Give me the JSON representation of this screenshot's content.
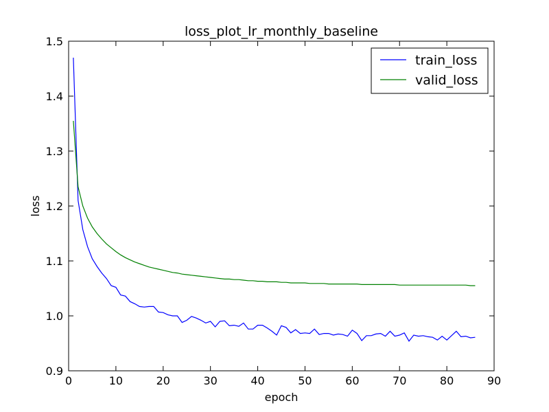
{
  "chart_data": {
    "type": "line",
    "title": "loss_plot_lr_monthly_baseline",
    "xlabel": "epoch",
    "ylabel": "loss",
    "xlim": [
      0,
      90
    ],
    "ylim": [
      0.9,
      1.5
    ],
    "xticks": [
      "0",
      "10",
      "20",
      "30",
      "40",
      "50",
      "60",
      "70",
      "80",
      "90"
    ],
    "yticks": [
      "0.9",
      "1.0",
      "1.1",
      "1.2",
      "1.3",
      "1.4",
      "1.5"
    ],
    "grid": false,
    "legend_position": "top-right",
    "series": [
      {
        "name": "train_loss",
        "color": "#0000ff",
        "x": [
          1,
          2,
          3,
          4,
          5,
          6,
          7,
          8,
          9,
          10,
          11,
          12,
          13,
          14,
          15,
          16,
          17,
          18,
          19,
          20,
          21,
          22,
          23,
          24,
          25,
          26,
          27,
          28,
          29,
          30,
          31,
          32,
          33,
          34,
          35,
          36,
          37,
          38,
          39,
          40,
          41,
          42,
          43,
          44,
          45,
          46,
          47,
          48,
          49,
          50,
          51,
          52,
          53,
          54,
          55,
          56,
          57,
          58,
          59,
          60,
          61,
          62,
          63,
          64,
          65,
          66,
          67,
          68,
          69,
          70,
          71,
          72,
          73,
          74,
          75,
          76,
          77,
          78,
          79,
          80,
          81,
          82,
          83,
          84,
          85,
          86
        ],
        "values": [
          1.47,
          1.21,
          1.157,
          1.126,
          1.104,
          1.09,
          1.078,
          1.068,
          1.055,
          1.052,
          1.038,
          1.036,
          1.026,
          1.022,
          1.017,
          1.016,
          1.017,
          1.017,
          1.007,
          1.006,
          1.002,
          1.0,
          1.0,
          0.988,
          0.992,
          0.999,
          0.996,
          0.992,
          0.987,
          0.99,
          0.98,
          0.99,
          0.991,
          0.982,
          0.983,
          0.981,
          0.987,
          0.976,
          0.976,
          0.983,
          0.983,
          0.978,
          0.972,
          0.965,
          0.982,
          0.979,
          0.969,
          0.975,
          0.968,
          0.969,
          0.968,
          0.976,
          0.966,
          0.968,
          0.968,
          0.965,
          0.967,
          0.966,
          0.963,
          0.974,
          0.968,
          0.955,
          0.964,
          0.964,
          0.967,
          0.968,
          0.963,
          0.972,
          0.963,
          0.965,
          0.969,
          0.954,
          0.965,
          0.963,
          0.964,
          0.962,
          0.961,
          0.956,
          0.963,
          0.956,
          0.964,
          0.972,
          0.962,
          0.963,
          0.96,
          0.961
        ]
      },
      {
        "name": "valid_loss",
        "color": "#008000",
        "x": [
          1,
          2,
          3,
          4,
          5,
          6,
          7,
          8,
          9,
          10,
          11,
          12,
          13,
          14,
          15,
          16,
          17,
          18,
          19,
          20,
          21,
          22,
          23,
          24,
          25,
          26,
          27,
          28,
          29,
          30,
          31,
          32,
          33,
          34,
          35,
          36,
          37,
          38,
          39,
          40,
          41,
          42,
          43,
          44,
          45,
          46,
          47,
          48,
          49,
          50,
          51,
          52,
          53,
          54,
          55,
          56,
          57,
          58,
          59,
          60,
          61,
          62,
          63,
          64,
          65,
          66,
          67,
          68,
          69,
          70,
          71,
          72,
          73,
          74,
          75,
          76,
          77,
          78,
          79,
          80,
          81,
          82,
          83,
          84,
          85,
          86
        ],
        "values": [
          1.355,
          1.235,
          1.2,
          1.178,
          1.162,
          1.15,
          1.14,
          1.131,
          1.124,
          1.117,
          1.111,
          1.106,
          1.102,
          1.098,
          1.095,
          1.092,
          1.089,
          1.087,
          1.085,
          1.083,
          1.081,
          1.079,
          1.078,
          1.076,
          1.075,
          1.074,
          1.073,
          1.072,
          1.071,
          1.07,
          1.069,
          1.068,
          1.067,
          1.067,
          1.066,
          1.066,
          1.065,
          1.064,
          1.064,
          1.063,
          1.063,
          1.062,
          1.062,
          1.062,
          1.061,
          1.061,
          1.06,
          1.06,
          1.06,
          1.06,
          1.059,
          1.059,
          1.059,
          1.059,
          1.058,
          1.058,
          1.058,
          1.058,
          1.058,
          1.058,
          1.058,
          1.057,
          1.057,
          1.057,
          1.057,
          1.057,
          1.057,
          1.057,
          1.057,
          1.056,
          1.056,
          1.056,
          1.056,
          1.056,
          1.056,
          1.056,
          1.056,
          1.056,
          1.056,
          1.056,
          1.056,
          1.056,
          1.056,
          1.056,
          1.055,
          1.055
        ]
      }
    ]
  }
}
